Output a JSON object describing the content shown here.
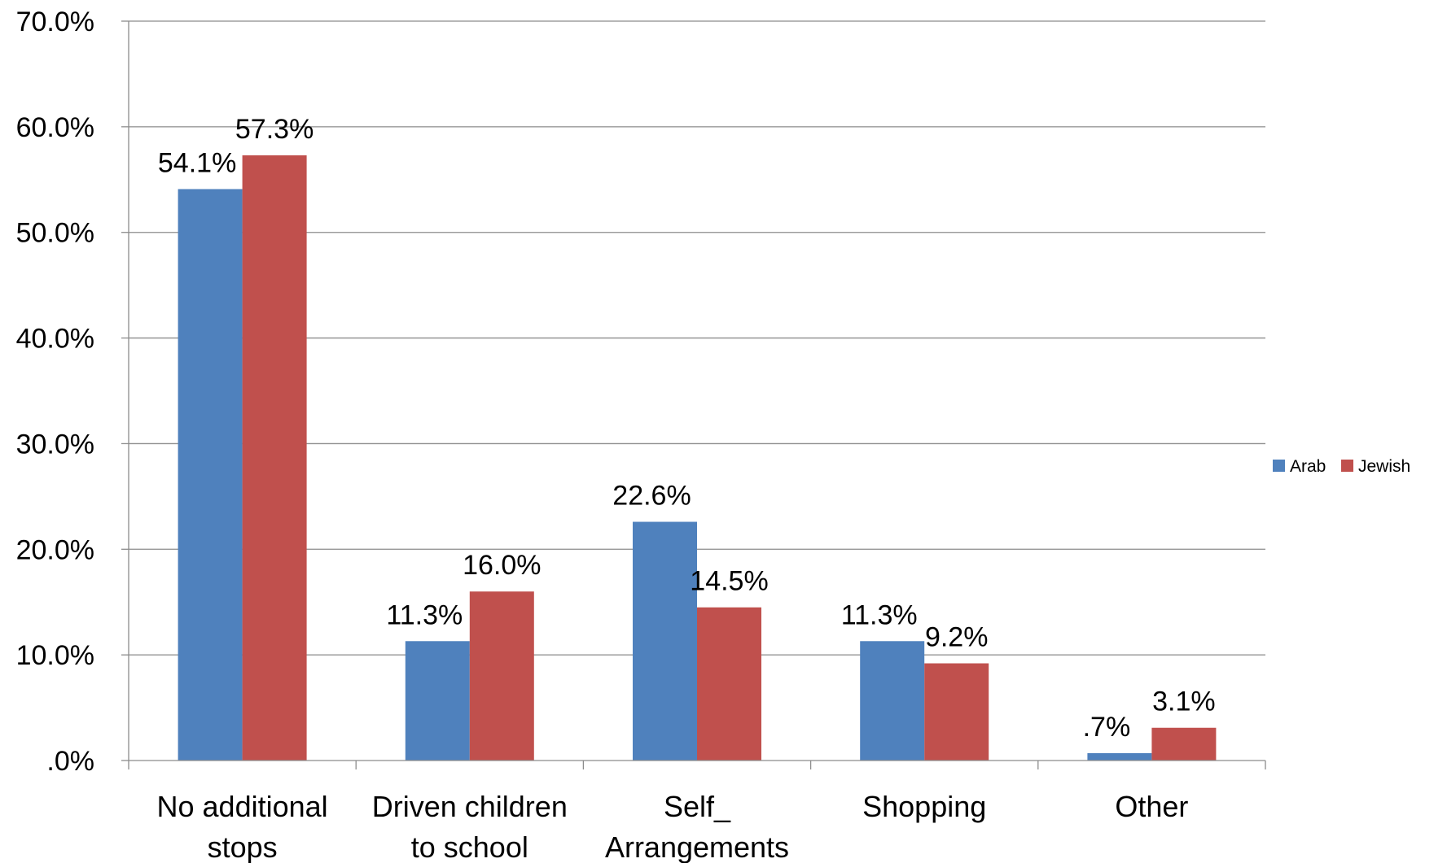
{
  "chart_data": {
    "type": "bar",
    "categories": [
      [
        "No additional",
        "stops"
      ],
      [
        "Driven children",
        "to school"
      ],
      [
        "Self_",
        "Arrangements"
      ],
      [
        "Shopping"
      ],
      [
        "Other"
      ]
    ],
    "series": [
      {
        "name": "Arab",
        "color": "#4F81BD",
        "values": [
          54.1,
          11.3,
          22.6,
          11.3,
          0.7
        ],
        "labels": [
          "54.1%",
          "11.3%",
          "22.6%",
          "11.3%",
          ".7%"
        ]
      },
      {
        "name": "Jewish",
        "color": "#C0504D",
        "values": [
          57.3,
          16.0,
          14.5,
          9.2,
          3.1
        ],
        "labels": [
          "57.3%",
          "16.0%",
          "14.5%",
          "9.2%",
          "3.1%"
        ]
      }
    ],
    "y_ticks": [
      0,
      10,
      20,
      30,
      40,
      50,
      60,
      70
    ],
    "y_tick_labels": [
      ".0%",
      "10.0%",
      "20.0%",
      "30.0%",
      "40.0%",
      "50.0%",
      "60.0%",
      "70.0%"
    ],
    "ylim": [
      0,
      70
    ],
    "grid": true,
    "legend_position": "right",
    "title": "",
    "xlabel": "",
    "ylabel": ""
  }
}
